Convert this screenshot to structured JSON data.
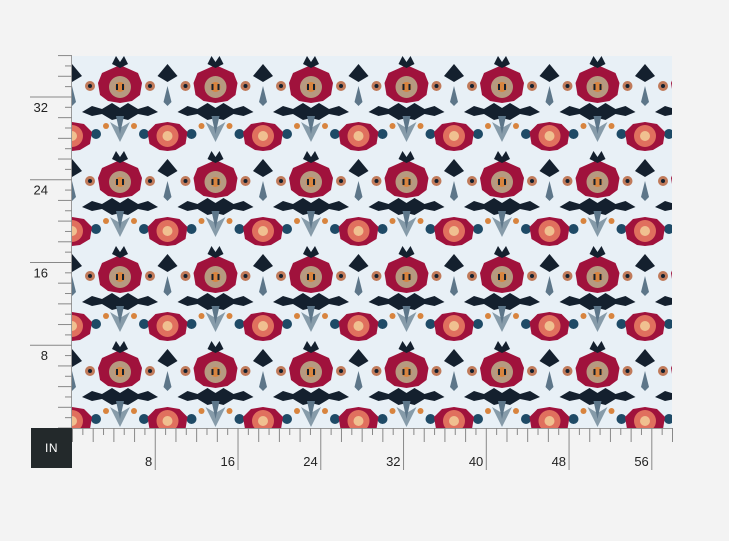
{
  "unit_label": "IN",
  "ruler": {
    "width_in": 58,
    "height_in": 36,
    "major_every": 8,
    "x_labels": [
      "8",
      "16",
      "24",
      "32",
      "40",
      "48",
      "56"
    ],
    "y_labels": [
      "8",
      "16",
      "24",
      "32"
    ]
  },
  "pattern": {
    "description_icon": "floral-damask-pattern",
    "colors": {
      "background": "#e8f0f6",
      "navy": "#14202e",
      "slate": "#5d7689",
      "crimson": "#a0123c",
      "tan": "#b69a80",
      "coral": "#e0705e",
      "orange": "#d8843e",
      "teal": "#1e4a66"
    }
  }
}
